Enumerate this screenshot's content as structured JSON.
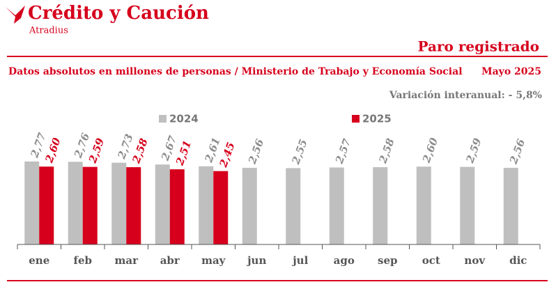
{
  "brand": {
    "name": "Crédito y Caución",
    "sub": "Atradius"
  },
  "chart_data": {
    "type": "bar",
    "title": "Paro registrado",
    "subtitle": "Datos absolutos en millones de personas / Ministerio de Trabajo y Economía Social",
    "date": "Mayo 2025",
    "annotation": "Variación interanual: - 5,8%",
    "categories": [
      "ene",
      "feb",
      "mar",
      "abr",
      "may",
      "jun",
      "jul",
      "ago",
      "sep",
      "oct",
      "nov",
      "dic"
    ],
    "series": [
      {
        "name": "2024",
        "color": "#bfbfbf",
        "label_color": "#8c8c8c",
        "values": [
          2.77,
          2.76,
          2.73,
          2.67,
          2.61,
          2.56,
          2.55,
          2.57,
          2.58,
          2.6,
          2.59,
          2.56
        ],
        "value_labels": [
          "2,77",
          "2,76",
          "2,73",
          "2,67",
          "2,61",
          "2,56",
          "2,55",
          "2,57",
          "2,58",
          "2,60",
          "2,59",
          "2,56"
        ]
      },
      {
        "name": "2025",
        "color": "#d6001c",
        "label_color": "#d6001c",
        "values": [
          2.6,
          2.59,
          2.58,
          2.51,
          2.45,
          null,
          null,
          null,
          null,
          null,
          null,
          null
        ],
        "value_labels": [
          "2,60",
          "2,59",
          "2,58",
          "2,51",
          "2,45",
          null,
          null,
          null,
          null,
          null,
          null,
          null
        ]
      }
    ],
    "ylim": [
      0,
      5
    ]
  }
}
